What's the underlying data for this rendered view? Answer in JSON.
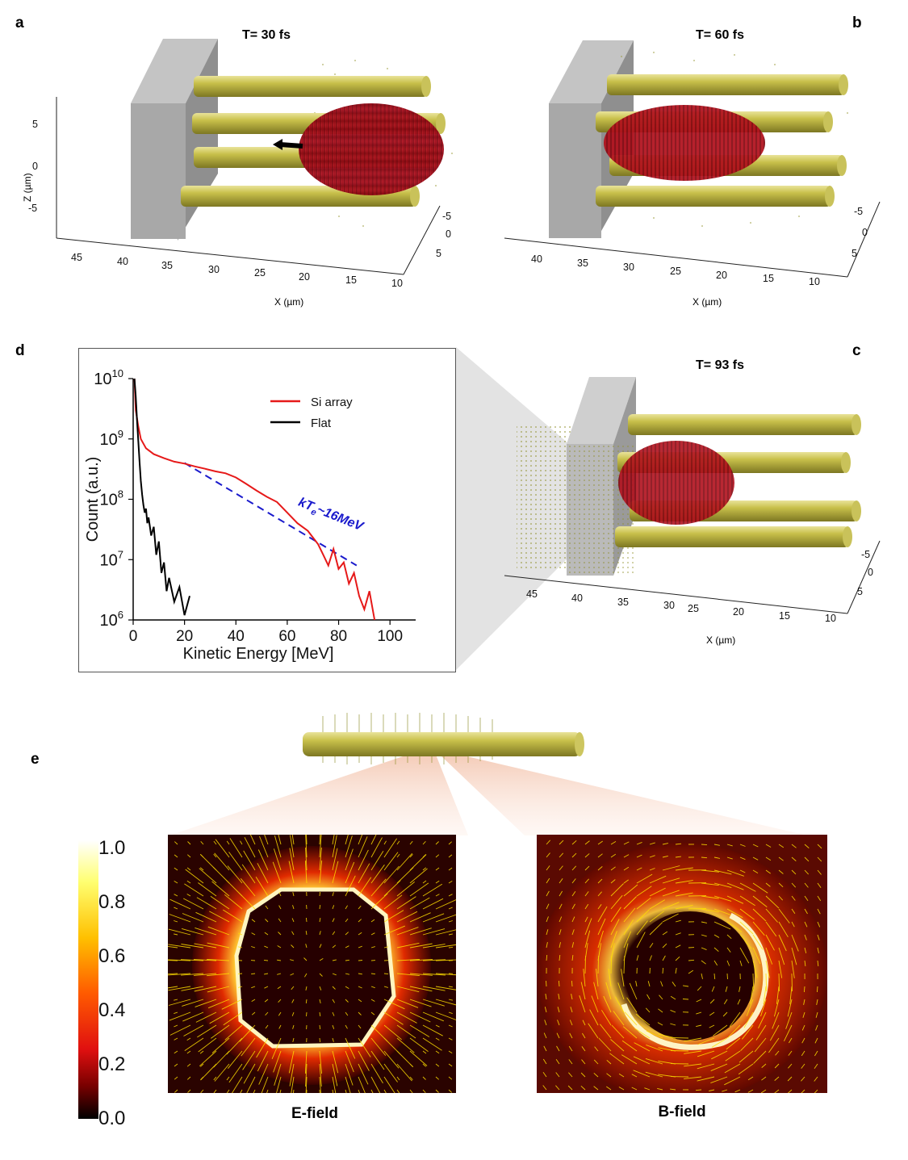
{
  "panels": {
    "a": {
      "label": "a",
      "title": "T= 30 fs"
    },
    "b": {
      "label": "b",
      "title": "T= 60 fs"
    },
    "c": {
      "label": "c",
      "title": "T= 93 fs"
    },
    "d": {
      "label": "d"
    },
    "e": {
      "label": "e"
    }
  },
  "axes3d": {
    "x_label": "X (µm)",
    "z_label": "Z (µm)",
    "x_ticks_a": [
      "45",
      "40",
      "35",
      "30",
      "25",
      "20",
      "15",
      "10"
    ],
    "x_ticks_bc": [
      "45",
      "40",
      "35",
      "30",
      "25",
      "20",
      "15",
      "10"
    ],
    "x_ticks_b": [
      "40",
      "35",
      "30",
      "25",
      "20",
      "15",
      "10"
    ],
    "y_ticks": [
      "-5",
      "0",
      "5"
    ],
    "z_ticks": [
      "5",
      "0",
      "-5"
    ]
  },
  "chart_data": {
    "type": "line",
    "title": "",
    "xlabel": "Kinetic Energy [MeV]",
    "ylabel": "Count (a.u.)",
    "xlim": [
      0,
      110
    ],
    "ylim": [
      1000000,
      10000000000
    ],
    "yscale": "log",
    "x_ticks": [
      "0",
      "20",
      "40",
      "60",
      "80",
      "100"
    ],
    "y_ticks": [
      {
        "base": "10",
        "exp": "6"
      },
      {
        "base": "10",
        "exp": "7"
      },
      {
        "base": "10",
        "exp": "8"
      },
      {
        "base": "10",
        "exp": "9"
      },
      {
        "base": "10",
        "exp": "10"
      }
    ],
    "legend_position": "top-right",
    "annotation": {
      "text": "kT",
      "sub": "e",
      "rest": "~16MeV",
      "color": "#1a1acc"
    },
    "series": [
      {
        "name": "Si array",
        "color": "#e61919",
        "x": [
          0.5,
          1,
          2,
          3,
          5,
          8,
          12,
          16,
          20,
          24,
          28,
          32,
          36,
          40,
          44,
          48,
          52,
          56,
          60,
          64,
          68,
          72,
          74,
          76,
          78,
          80,
          82,
          84,
          86,
          88,
          90,
          92,
          94
        ],
        "y": [
          10000000000,
          3000000000,
          1600000000,
          1000000000,
          700000000,
          560000000,
          480000000,
          420000000,
          390000000,
          350000000,
          320000000,
          290000000,
          270000000,
          230000000,
          180000000,
          140000000,
          110000000,
          90000000,
          60000000,
          40000000,
          30000000,
          18000000,
          12000000,
          8000000,
          15000000,
          7000000,
          9000000,
          4000000,
          6000000,
          2500000,
          1500000,
          3000000,
          1000000
        ]
      },
      {
        "name": "Flat",
        "color": "#000000",
        "x": [
          0.5,
          1,
          1.5,
          2,
          2.5,
          3,
          3.5,
          4,
          4.5,
          5,
          5.5,
          6,
          7,
          8,
          9,
          10,
          11,
          12,
          13,
          14,
          16,
          18,
          20,
          22
        ],
        "y": [
          10000000000,
          5000000000,
          2000000000,
          900000000,
          400000000,
          200000000,
          120000000,
          80000000,
          60000000,
          70000000,
          40000000,
          50000000,
          25000000,
          35000000,
          12000000,
          20000000,
          6000000,
          9000000,
          3000000,
          5000000,
          2000000,
          3500000,
          1200000,
          2500000
        ]
      }
    ],
    "fit_line": {
      "name": "kTe fit",
      "color": "#1a1acc",
      "style": "dashed",
      "x": [
        20,
        87
      ],
      "y": [
        400000000,
        8000000
      ]
    }
  },
  "colorbar": {
    "ticks": [
      "1.0",
      "0.8",
      "0.6",
      "0.4",
      "0.2",
      "0.0"
    ],
    "colors": [
      "#ffffff",
      "#ffff66",
      "#ffcc00",
      "#ff6600",
      "#ee1111",
      "#880000",
      "#000000"
    ]
  },
  "field_maps": [
    {
      "caption": "E-field"
    },
    {
      "caption": "B-field"
    }
  ],
  "colors": {
    "rod": "#b8b040",
    "laser": "#c0101f",
    "block": "#a0a0a0",
    "arrow": "#ffe000"
  }
}
